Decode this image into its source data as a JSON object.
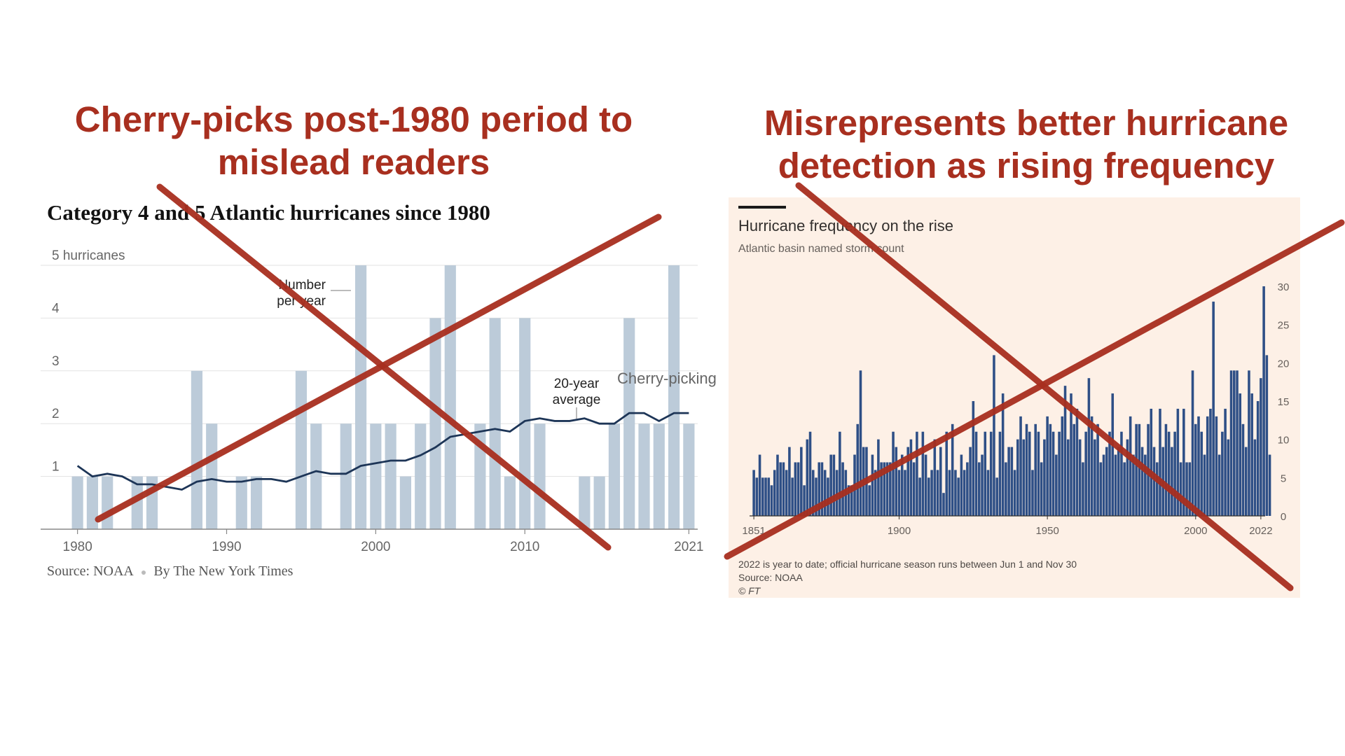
{
  "headlines": {
    "left": [
      "Cherry-picks post-1980 period to",
      "mislead readers"
    ],
    "right": [
      "Misrepresents better hurricane",
      "detection as rising frequency"
    ]
  },
  "colors": {
    "headline": "#a82f1f",
    "cross": "#a82f1f",
    "nyt_bar": "#bccbd9",
    "nyt_line": "#1d3557",
    "ft_bar": "#2e4f86",
    "ft_bg": "#fdf0e6"
  },
  "left_chart": {
    "title": "Category 4 and 5 Atlantic hurricanes since 1980",
    "source": "Source: NOAA",
    "byline": "By The New York Times",
    "annotations": {
      "bars_label": [
        "Number",
        "per year"
      ],
      "line_label": [
        "20-year",
        "average"
      ],
      "side_label": "Cherry-picking"
    },
    "ytick_labels": [
      "5 hurricanes",
      "4",
      "3",
      "2",
      "1"
    ]
  },
  "right_chart": {
    "title": "Hurricane frequency on the rise",
    "subtitle": "Atlantic basin named storm count",
    "notes": [
      "2022 is year to date; official hurricane season runs between Jun 1 and Nov 30",
      "Source: NOAA",
      "© FT"
    ]
  },
  "chart_data": [
    {
      "type": "bar",
      "title": "Category 4 and 5 Atlantic hurricanes since 1980",
      "ylabel": "",
      "ylim": [
        0,
        5
      ],
      "yticks": [
        1,
        2,
        3,
        4,
        5
      ],
      "xtick_labels": [
        "1980",
        "1990",
        "2000",
        "2010",
        "2021"
      ],
      "x_range": [
        1980,
        2021
      ],
      "grid": true,
      "categories": [
        1980,
        1981,
        1982,
        1983,
        1984,
        1985,
        1986,
        1987,
        1988,
        1989,
        1990,
        1991,
        1992,
        1993,
        1994,
        1995,
        1996,
        1997,
        1998,
        1999,
        2000,
        2001,
        2002,
        2003,
        2004,
        2005,
        2006,
        2007,
        2008,
        2009,
        2010,
        2011,
        2012,
        2013,
        2014,
        2015,
        2016,
        2017,
        2018,
        2019,
        2020,
        2021
      ],
      "series": [
        {
          "name": "Number per year",
          "kind": "bar",
          "values": [
            1,
            1,
            1,
            0,
            1,
            1,
            0,
            0,
            3,
            2,
            0,
            1,
            1,
            0,
            0,
            3,
            2,
            0,
            2,
            5,
            2,
            2,
            1,
            2,
            4,
            5,
            0,
            2,
            4,
            1,
            4,
            2,
            0,
            0,
            1,
            1,
            2,
            4,
            2,
            2,
            5,
            2
          ]
        },
        {
          "name": "20-year average",
          "kind": "line",
          "values": [
            1.2,
            1.0,
            1.05,
            1.0,
            0.85,
            0.85,
            0.8,
            0.75,
            0.9,
            0.95,
            0.9,
            0.9,
            0.95,
            0.95,
            0.9,
            1.0,
            1.1,
            1.05,
            1.05,
            1.2,
            1.25,
            1.3,
            1.3,
            1.4,
            1.55,
            1.75,
            1.8,
            1.85,
            1.9,
            1.85,
            2.05,
            2.1,
            2.05,
            2.05,
            2.1,
            2.0,
            2.0,
            2.2,
            2.2,
            2.05,
            2.2,
            2.2
          ]
        }
      ]
    },
    {
      "type": "bar",
      "title": "Hurricane frequency on the rise",
      "subtitle": "Atlantic basin named storm count",
      "ylim": [
        0,
        30
      ],
      "yticks": [
        0,
        5,
        10,
        15,
        20,
        25,
        30
      ],
      "xtick_labels": [
        "1851",
        "1900",
        "1950",
        "2000",
        "2022"
      ],
      "x_range": [
        1851,
        2022
      ],
      "series": [
        {
          "name": "",
          "start_year": 1851,
          "values": [
            6,
            5,
            8,
            5,
            5,
            5,
            4,
            6,
            8,
            7,
            7,
            6,
            9,
            5,
            7,
            7,
            9,
            4,
            10,
            11,
            6,
            5,
            7,
            7,
            6,
            5,
            8,
            8,
            6,
            11,
            7,
            6,
            4,
            4,
            8,
            12,
            19,
            9,
            9,
            4,
            8,
            6,
            10,
            7,
            7,
            7,
            7,
            11,
            9,
            6,
            8,
            6,
            9,
            10,
            7,
            11,
            5,
            11,
            8,
            5,
            6,
            10,
            6,
            9,
            3,
            11,
            6,
            12,
            6,
            5,
            8,
            6,
            7,
            9,
            15,
            11,
            7,
            8,
            11,
            6,
            11,
            21,
            5,
            11,
            16,
            7,
            9,
            9,
            6,
            10,
            13,
            10,
            12,
            11,
            6,
            12,
            11,
            7,
            10,
            13,
            12,
            11,
            8,
            11,
            13,
            17,
            10,
            16,
            12,
            14,
            10,
            7,
            11,
            18,
            13,
            10,
            12,
            7,
            8,
            9,
            11,
            16,
            8,
            9,
            11,
            7,
            10,
            13,
            8,
            12,
            12,
            9,
            8,
            12,
            14,
            9,
            7,
            14,
            9,
            12,
            11,
            9,
            11,
            14,
            7,
            14,
            7,
            7,
            19,
            12,
            13,
            11,
            8,
            13,
            14,
            28,
            13,
            8,
            11,
            14,
            10,
            19,
            19,
            19,
            16,
            12,
            9,
            19,
            16,
            10,
            15,
            18,
            30,
            21,
            8
          ]
        }
      ]
    }
  ]
}
